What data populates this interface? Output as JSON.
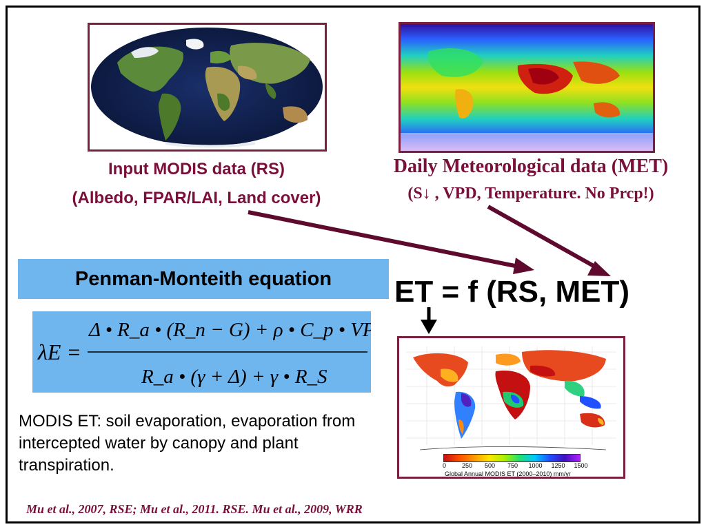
{
  "rs": {
    "title": "Input MODIS data (RS)",
    "subtitle": "(Albedo, FPAR/LAI, Land cover)"
  },
  "met": {
    "title": "Daily Meteorological data (MET)",
    "subtitle": "(S↓ , VPD, Temperature. No Prcp!)"
  },
  "penman": {
    "label": "Penman-Monteith equation"
  },
  "equation": {
    "lhs": "λE =",
    "numerator": "Δ • R_a • (R_n − G) + ρ • C_p • VPD",
    "denominator": "R_a • (γ + Δ) + γ • R_S"
  },
  "et_formula": "ET = f (RS, MET)",
  "description": "MODIS ET: soil evaporation, evaporation from intercepted water by canopy and plant transpiration.",
  "citation": "Mu et al., 2007, RSE; Mu et al., 2011. RSE.  Mu et al., 2009, WRR",
  "et_map": {
    "colorbar_ticks": [
      "0",
      "250",
      "500",
      "750",
      "1000",
      "1250",
      "1500"
    ],
    "caption": "Global Annual MODIS ET (2000–2010) mm/yr"
  },
  "colors": {
    "accent": "#7a0f3a",
    "frame_border": "#7a1f3d",
    "equation_bg": "#6fb5ee",
    "arrow": "#5e0a2e"
  }
}
